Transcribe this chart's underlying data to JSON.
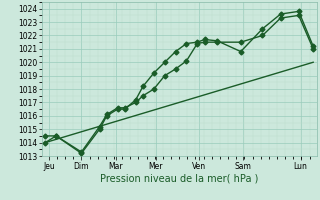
{
  "xlabel": "Pression niveau de la mer( hPa )",
  "background_color": "#cce8dc",
  "grid_color_major": "#99ccbb",
  "grid_color_minor": "#bbddcc",
  "line_color": "#1a5c28",
  "ylim": [
    1013,
    1024.5
  ],
  "xlim": [
    -0.05,
    7.55
  ],
  "yticks": [
    1013,
    1014,
    1015,
    1016,
    1017,
    1018,
    1019,
    1020,
    1021,
    1022,
    1023,
    1024
  ],
  "day_labels": [
    "Jeu",
    "Dim",
    "Mar",
    "Mer",
    "Ven",
    "Sam",
    "Lun"
  ],
  "day_positions": [
    0.15,
    1.05,
    2.0,
    3.1,
    4.3,
    5.5,
    7.1
  ],
  "line1_x": [
    0.05,
    0.35,
    1.05,
    1.55,
    1.75,
    2.05,
    2.25,
    2.55,
    2.75,
    3.05,
    3.35,
    3.65,
    3.95,
    4.25,
    4.45,
    4.8,
    5.45,
    6.05,
    6.55,
    7.05,
    7.45
  ],
  "line1_y": [
    1014.5,
    1014.5,
    1013.3,
    1015.2,
    1016.1,
    1016.6,
    1016.6,
    1017.0,
    1017.5,
    1018.0,
    1019.0,
    1019.5,
    1020.1,
    1021.4,
    1021.5,
    1021.5,
    1021.5,
    1022.0,
    1023.3,
    1023.5,
    1021.0
  ],
  "line2_x": [
    0.05,
    0.35,
    1.05,
    1.55,
    1.75,
    2.05,
    2.25,
    2.55,
    2.75,
    3.05,
    3.35,
    3.65,
    3.95,
    4.25,
    4.45,
    4.8,
    5.45,
    6.05,
    6.55,
    7.05,
    7.45
  ],
  "line2_y": [
    1014.0,
    1014.5,
    1013.2,
    1015.0,
    1016.0,
    1016.5,
    1016.5,
    1017.2,
    1018.2,
    1019.2,
    1020.0,
    1020.8,
    1021.4,
    1021.5,
    1021.7,
    1021.6,
    1020.8,
    1022.5,
    1023.6,
    1023.8,
    1021.2
  ],
  "line3_x": [
    0.05,
    7.45
  ],
  "line3_y": [
    1014.0,
    1020.0
  ],
  "marker": "D",
  "marker_size": 2.5,
  "line_width": 1.0,
  "tick_fontsize": 5.5,
  "xlabel_fontsize": 7.0,
  "xlabel_color": "#1a5c28"
}
